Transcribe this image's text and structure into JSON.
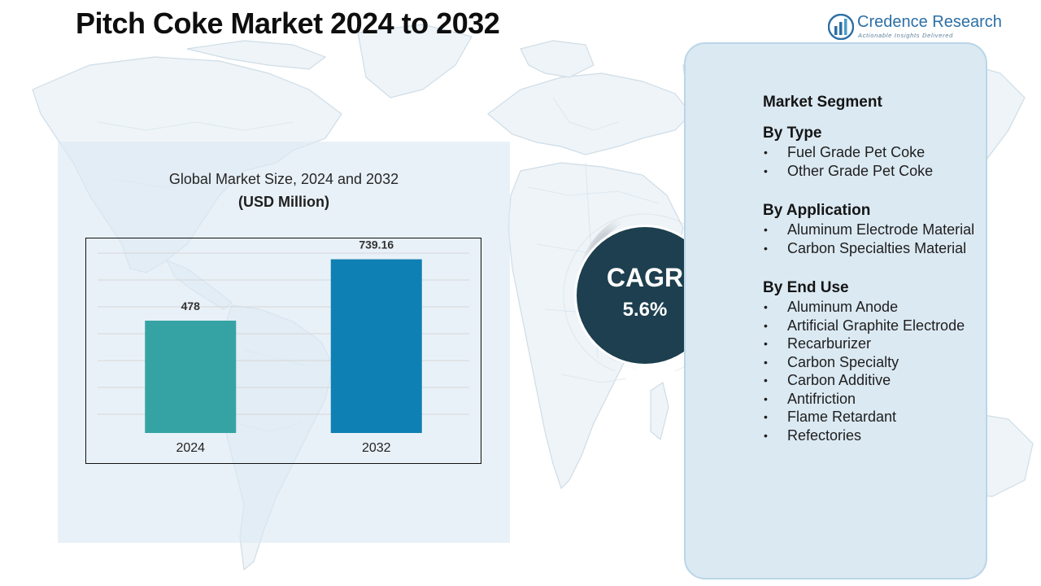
{
  "header": {
    "title": "Pitch Coke Market 2024 to 2032"
  },
  "logo": {
    "name": "Credence Research",
    "tagline": "Actionable Insights Delivered",
    "icon": "credence-logo-icon"
  },
  "chart_panel": {
    "title": "Global Market Size, 2024 and 2032",
    "subtitle": "(USD Million)"
  },
  "chart_data": {
    "type": "bar",
    "categories": [
      "2024",
      "2032"
    ],
    "values": [
      478,
      739.16
    ],
    "value_labels": [
      "478",
      "739.16"
    ],
    "title": "Global Market Size, 2024 and 2032",
    "subtitle": "(USD Million)",
    "xlabel": "",
    "ylabel": "",
    "ylim": [
      0,
      800
    ],
    "grid": true,
    "colors": [
      "#35a3a3",
      "#0f80b3"
    ],
    "gridline_color": "#d6d6d6"
  },
  "cagr": {
    "label": "CAGR",
    "value": "5.6%"
  },
  "segments": {
    "heading": "Market Segment",
    "groups": [
      {
        "title": "By Type",
        "items": [
          "Fuel Grade Pet Coke",
          "Other Grade Pet Coke"
        ]
      },
      {
        "title": "By Application",
        "items": [
          "Aluminum Electrode Material",
          "Carbon Specialties Material"
        ]
      },
      {
        "title": "By End Use",
        "items": [
          "Aluminum Anode",
          "Artificial Graphite Electrode",
          "Recarburizer",
          "Carbon Specialty",
          "Carbon Additive",
          "Antifriction",
          "Flame Retardant",
          "Refectories"
        ]
      }
    ]
  },
  "colors": {
    "title": "#0e0e0e",
    "cagr_circle": "#1d3f4f",
    "segment_panel": "#dbe9f2",
    "chart_panel": "#dce9f3",
    "logo_blue": "#2c6fa5"
  }
}
